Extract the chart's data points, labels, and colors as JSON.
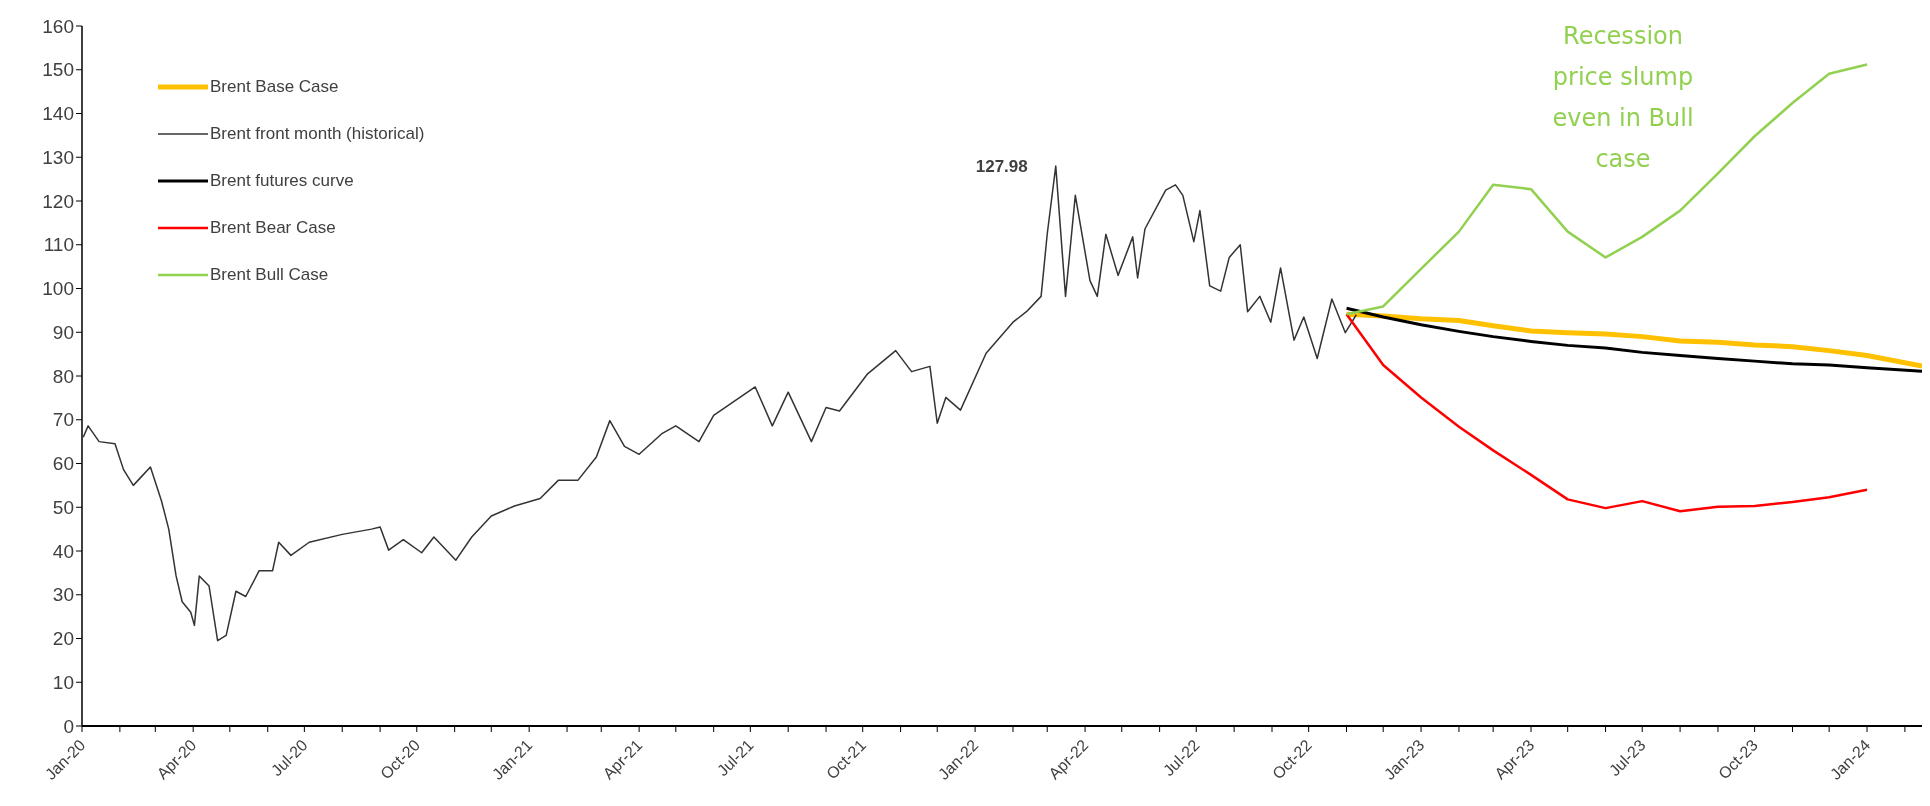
{
  "chart_data": {
    "type": "line",
    "legend": "top left",
    "grid": false,
    "marker": "none",
    "line_style": "solid",
    "xlim": [
      "2020-01-01",
      "2024-02-15"
    ],
    "xticks": [
      {
        "value": "2020-01-01",
        "label": "Jan-20"
      },
      {
        "value": "2020-02-01",
        "label": null
      },
      {
        "value": "2020-03-01",
        "label": null
      },
      {
        "value": "2020-04-01",
        "label": "Apr-20"
      },
      {
        "value": "2020-05-01",
        "label": null
      },
      {
        "value": "2020-06-01",
        "label": null
      },
      {
        "value": "2020-07-01",
        "label": "Jul-20"
      },
      {
        "value": "2020-08-01",
        "label": null
      },
      {
        "value": "2020-09-01",
        "label": null
      },
      {
        "value": "2020-10-01",
        "label": "Oct-20"
      },
      {
        "value": "2020-11-01",
        "label": null
      },
      {
        "value": "2020-12-01",
        "label": null
      },
      {
        "value": "2021-01-01",
        "label": "Jan-21"
      },
      {
        "value": "2021-02-01",
        "label": null
      },
      {
        "value": "2021-03-01",
        "label": null
      },
      {
        "value": "2021-04-01",
        "label": "Apr-21"
      },
      {
        "value": "2021-05-01",
        "label": null
      },
      {
        "value": "2021-06-01",
        "label": null
      },
      {
        "value": "2021-07-01",
        "label": "Jul-21"
      },
      {
        "value": "2021-08-01",
        "label": null
      },
      {
        "value": "2021-09-01",
        "label": null
      },
      {
        "value": "2021-10-01",
        "label": "Oct-21"
      },
      {
        "value": "2021-11-01",
        "label": null
      },
      {
        "value": "2021-12-01",
        "label": null
      },
      {
        "value": "2022-01-01",
        "label": "Jan-22"
      },
      {
        "value": "2022-02-01",
        "label": null
      },
      {
        "value": "2022-03-01",
        "label": null
      },
      {
        "value": "2022-04-01",
        "label": "Apr-22"
      },
      {
        "value": "2022-05-01",
        "label": null
      },
      {
        "value": "2022-06-01",
        "label": null
      },
      {
        "value": "2022-07-01",
        "label": "Jul-22"
      },
      {
        "value": "2022-08-01",
        "label": null
      },
      {
        "value": "2022-09-01",
        "label": null
      },
      {
        "value": "2022-10-01",
        "label": "Oct-22"
      },
      {
        "value": "2022-11-01",
        "label": null
      },
      {
        "value": "2022-12-01",
        "label": null
      },
      {
        "value": "2023-01-01",
        "label": "Jan-23"
      },
      {
        "value": "2023-02-01",
        "label": null
      },
      {
        "value": "2023-03-01",
        "label": null
      },
      {
        "value": "2023-04-01",
        "label": "Apr-23"
      },
      {
        "value": "2023-05-01",
        "label": null
      },
      {
        "value": "2023-06-01",
        "label": null
      },
      {
        "value": "2023-07-01",
        "label": "Jul-23"
      },
      {
        "value": "2023-08-01",
        "label": null
      },
      {
        "value": "2023-09-01",
        "label": null
      },
      {
        "value": "2023-10-01",
        "label": "Oct-23"
      },
      {
        "value": "2023-11-01",
        "label": null
      },
      {
        "value": "2023-12-01",
        "label": null
      },
      {
        "value": "2024-01-01",
        "label": "Jan-24"
      },
      {
        "value": "2024-02-01",
        "label": null
      }
    ],
    "ylim": [
      0,
      160
    ],
    "yticks": [
      0,
      10,
      20,
      30,
      40,
      50,
      60,
      70,
      80,
      90,
      100,
      110,
      120,
      130,
      140,
      150,
      160
    ],
    "annotations": [
      {
        "text": "127.98",
        "x": "2022-03-08",
        "y": 127.98
      },
      "Recession price slump even in Bull case"
    ],
    "series": [
      {
        "name": "Brent Base Case",
        "color": "#ffc000",
        "x": [
          "2022-11-01",
          "2022-12-01",
          "2023-01-01",
          "2023-02-01",
          "2023-03-01",
          "2023-04-01",
          "2023-05-01",
          "2023-06-01",
          "2023-07-01",
          "2023-08-01",
          "2023-09-01",
          "2023-10-01",
          "2023-11-01",
          "2023-12-01",
          "2024-01-01",
          "2024-02-15"
        ],
        "values": [
          94.1,
          93.7,
          93.1,
          92.7,
          91.5,
          90.3,
          89.9,
          89.6,
          89,
          88,
          87.7,
          87.1,
          86.7,
          85.8,
          84.7,
          82.3
        ]
      },
      {
        "name": "Brent front month (historical)",
        "color": "#333333",
        "x": [
          "2020-01-02",
          "2020-01-06",
          "2020-01-15",
          "2020-01-28",
          "2020-02-04",
          "2020-02-12",
          "2020-02-20",
          "2020-02-26",
          "2020-03-06",
          "2020-03-12",
          "2020-03-18",
          "2020-03-23",
          "2020-03-30",
          "2020-04-02",
          "2020-04-06",
          "2020-04-14",
          "2020-04-21",
          "2020-04-28",
          "2020-05-06",
          "2020-05-14",
          "2020-05-25",
          "2020-06-05",
          "2020-06-10",
          "2020-06-20",
          "2020-07-05",
          "2020-08-01",
          "2020-08-25",
          "2020-09-01",
          "2020-09-08",
          "2020-09-20",
          "2020-10-05",
          "2020-10-15",
          "2020-11-02",
          "2020-11-15",
          "2020-12-01",
          "2020-12-20",
          "2021-01-10",
          "2021-01-25",
          "2021-02-10",
          "2021-02-25",
          "2021-03-08",
          "2021-03-20",
          "2021-04-01",
          "2021-04-20",
          "2021-05-01",
          "2021-05-20",
          "2021-06-01",
          "2021-07-05",
          "2021-07-19",
          "2021-08-01",
          "2021-08-20",
          "2021-09-01",
          "2021-09-12",
          "2021-10-05",
          "2021-10-28",
          "2021-11-10",
          "2021-11-25",
          "2021-12-01",
          "2021-12-08",
          "2021-12-20",
          "2022-01-10",
          "2022-02-01",
          "2022-02-12",
          "2022-02-24",
          "2022-03-01",
          "2022-03-08",
          "2022-03-16",
          "2022-03-24",
          "2022-04-05",
          "2022-04-11",
          "2022-04-18",
          "2022-04-28",
          "2022-05-10",
          "2022-05-14",
          "2022-05-20",
          "2022-06-06",
          "2022-06-14",
          "2022-06-20",
          "2022-06-29",
          "2022-07-04",
          "2022-07-12",
          "2022-07-21",
          "2022-07-28",
          "2022-08-06",
          "2022-08-12",
          "2022-08-22",
          "2022-08-31",
          "2022-09-08",
          "2022-09-19",
          "2022-09-27",
          "2022-10-08",
          "2022-10-20",
          "2022-10-31",
          "2022-11-09"
        ],
        "values": [
          66,
          68.6,
          65,
          64.5,
          58.6,
          55,
          57.4,
          59.2,
          51.5,
          45,
          34.3,
          28.4,
          26,
          23,
          34.3,
          32,
          19.5,
          20.7,
          30.8,
          29.6,
          35.5,
          35.5,
          42,
          39,
          42,
          43.8,
          45,
          45.5,
          40.2,
          42.6,
          39.6,
          43.2,
          37.9,
          43.2,
          48,
          50.3,
          52,
          56.2,
          56.2,
          61.5,
          69.8,
          63.9,
          62.1,
          66.9,
          68.6,
          65,
          71,
          77.5,
          68.6,
          76.3,
          65,
          72.8,
          72,
          80.5,
          85.8,
          81,
          82.2,
          69.2,
          75.1,
          72.2,
          85.2,
          92.3,
          94.7,
          98.2,
          112.4,
          127.98,
          98.2,
          121.3,
          101.8,
          98.2,
          112.4,
          103,
          111.8,
          102.4,
          113.6,
          122.5,
          123.7,
          121.3,
          110.7,
          117.8,
          100.6,
          99.4,
          107.1,
          110,
          94.7,
          98.2,
          92.3,
          104.7,
          88.2,
          93.5,
          84,
          97.6,
          89.9,
          94
        ]
      },
      {
        "name": "Brent futures curve",
        "color": "#000000",
        "x": [
          "2022-11-01",
          "2022-12-01",
          "2023-01-01",
          "2023-02-01",
          "2023-03-01",
          "2023-04-01",
          "2023-05-01",
          "2023-06-01",
          "2023-07-01",
          "2023-08-01",
          "2023-09-01",
          "2023-10-01",
          "2023-11-01",
          "2023-12-01",
          "2024-01-01",
          "2024-02-15"
        ],
        "values": [
          95.5,
          93.5,
          91.7,
          90.2,
          89,
          87.9,
          87,
          86.4,
          85.4,
          84.7,
          84,
          83.4,
          82.8,
          82.5,
          81.9,
          81.1
        ]
      },
      {
        "name": "Brent Bear Case",
        "color": "#ff0000",
        "x": [
          "2022-11-01",
          "2022-12-01",
          "2023-01-01",
          "2023-02-01",
          "2023-03-01",
          "2023-04-01",
          "2023-05-01",
          "2023-06-01",
          "2023-07-01",
          "2023-08-01",
          "2023-09-01",
          "2023-10-01",
          "2023-11-01",
          "2023-12-01",
          "2024-01-01"
        ],
        "values": [
          94.1,
          82.5,
          75.1,
          68.4,
          63,
          57.4,
          51.8,
          49.8,
          51.4,
          49.1,
          50.1,
          50.3,
          51.2,
          52.3,
          54
        ]
      },
      {
        "name": "Brent Bull Case",
        "color": "#92d050",
        "x": [
          "2022-11-01",
          "2022-12-01",
          "2023-01-01",
          "2023-02-01",
          "2023-03-01",
          "2023-04-01",
          "2023-05-01",
          "2023-06-01",
          "2023-07-01",
          "2023-08-01",
          "2023-09-01",
          "2023-10-01",
          "2023-11-01",
          "2023-12-01",
          "2024-01-01"
        ],
        "values": [
          94.1,
          95.9,
          104.5,
          113,
          123.7,
          122.7,
          113,
          107.1,
          111.8,
          117.8,
          126.3,
          134.8,
          142.4,
          149.1,
          151.2
        ]
      }
    ]
  }
}
